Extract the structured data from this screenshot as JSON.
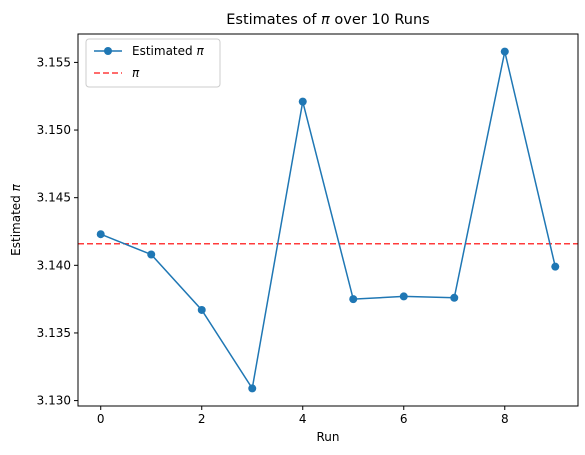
{
  "chart_data": {
    "type": "line",
    "title_prefix": "Estimates of ",
    "title_symbol": "π",
    "title_suffix": " over 10 Runs",
    "xlabel": "Run",
    "ylabel_prefix": "Estimated ",
    "ylabel_symbol": "π",
    "xlim": [
      -0.45,
      9.45
    ],
    "ylim": [
      3.1296,
      3.1571
    ],
    "xticks": [
      0,
      2,
      4,
      6,
      8
    ],
    "yticks": [
      3.13,
      3.135,
      3.14,
      3.145,
      3.15,
      3.155
    ],
    "ytick_labels": [
      "3.130",
      "3.135",
      "3.140",
      "3.145",
      "3.150",
      "3.155"
    ],
    "series": [
      {
        "name_prefix": "Estimated ",
        "name_symbol": "π",
        "x": [
          0,
          1,
          2,
          3,
          4,
          5,
          6,
          7,
          8,
          9
        ],
        "values": [
          3.1423,
          3.1408,
          3.1367,
          3.1309,
          3.1521,
          3.1375,
          3.1377,
          3.1376,
          3.1558,
          3.1399
        ],
        "color": "#1f77b4",
        "marker": "circle"
      }
    ],
    "reference_line": {
      "name": "π",
      "value": 3.14159,
      "color": "#ff3b3b",
      "style": "dashed"
    },
    "legend_position": "top-left",
    "grid": false
  }
}
